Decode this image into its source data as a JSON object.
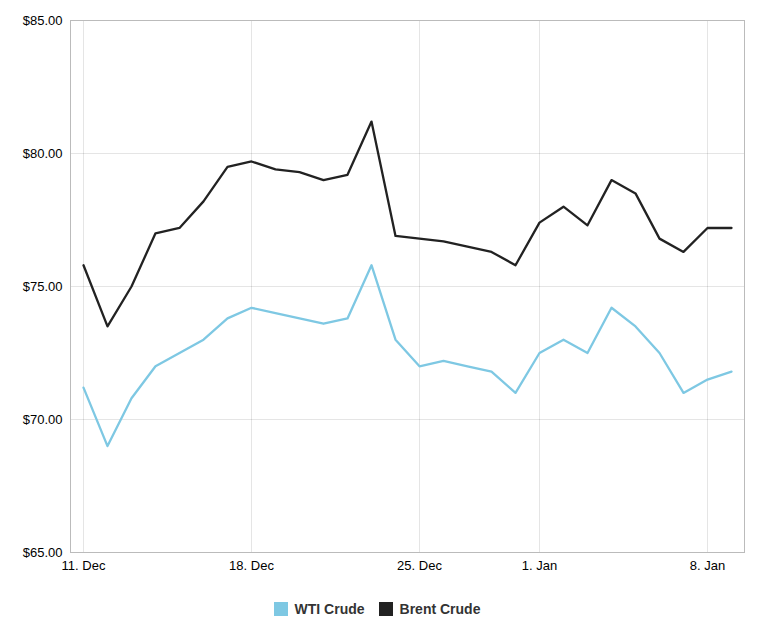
{
  "chart_data": {
    "type": "line",
    "categories": [
      "11. Dec",
      null,
      null,
      null,
      null,
      null,
      null,
      "18. Dec",
      null,
      null,
      null,
      null,
      null,
      null,
      "25. Dec",
      null,
      null,
      null,
      null,
      "1. Jan",
      null,
      null,
      null,
      null,
      null,
      null,
      "8. Jan",
      null
    ],
    "series": [
      {
        "name": "WTI Crude",
        "color": "#7ec8e3",
        "values": [
          71.2,
          69.0,
          70.8,
          72.0,
          72.5,
          73.0,
          73.8,
          74.2,
          74.0,
          73.8,
          73.6,
          73.8,
          75.8,
          73.0,
          72.0,
          72.2,
          72.0,
          71.8,
          71.0,
          72.5,
          73.0,
          72.5,
          74.2,
          73.5,
          72.5,
          71.0,
          71.5,
          71.8
        ]
      },
      {
        "name": "Brent Crude",
        "color": "#222222",
        "values": [
          75.8,
          73.5,
          75.0,
          77.0,
          77.2,
          78.2,
          79.5,
          79.7,
          79.4,
          79.3,
          79.0,
          79.2,
          81.2,
          76.9,
          76.8,
          76.7,
          76.5,
          76.3,
          75.8,
          77.4,
          78.0,
          77.3,
          79.0,
          78.5,
          76.8,
          76.3,
          77.2,
          77.2
        ]
      }
    ],
    "ylim": [
      65.0,
      85.0
    ],
    "yticks": [
      {
        "value": 65.0,
        "label": "$65.00"
      },
      {
        "value": 70.0,
        "label": "$70.00"
      },
      {
        "value": 75.0,
        "label": "$75.00"
      },
      {
        "value": 80.0,
        "label": "$80.00"
      },
      {
        "value": 85.0,
        "label": "$85.00"
      }
    ],
    "grid": true,
    "legend": "bottom"
  }
}
